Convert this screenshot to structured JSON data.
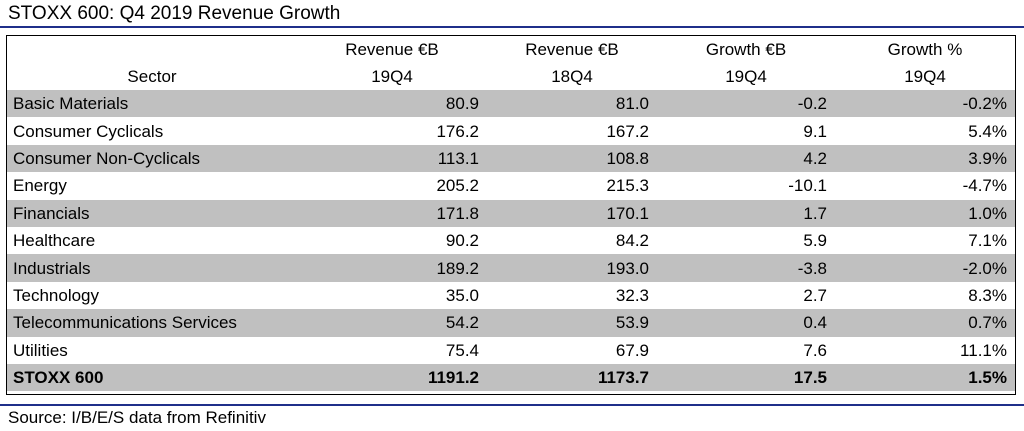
{
  "title": "STOXX 600: Q4 2019 Revenue Growth",
  "source": "Source: I/B/E/S data from Refinitiv",
  "colors": {
    "rule": "#1f2f8a",
    "shaded_row": "#c0c0c0"
  },
  "chart_data": {
    "type": "table",
    "title": "STOXX 600: Q4 2019 Revenue Growth",
    "columns": [
      {
        "line1": "",
        "line2": "Sector"
      },
      {
        "line1": "Revenue €B",
        "line2": "19Q4"
      },
      {
        "line1": "Revenue €B",
        "line2": "18Q4"
      },
      {
        "line1": "Growth €B",
        "line2": "19Q4"
      },
      {
        "line1": "Growth %",
        "line2": "19Q4"
      }
    ],
    "rows": [
      {
        "sector": "Basic Materials",
        "rev_19q4": "80.9",
        "rev_18q4": "81.0",
        "growth_eur": "-0.2",
        "growth_pct": "-0.2%"
      },
      {
        "sector": "Consumer Cyclicals",
        "rev_19q4": "176.2",
        "rev_18q4": "167.2",
        "growth_eur": "9.1",
        "growth_pct": "5.4%"
      },
      {
        "sector": "Consumer Non-Cyclicals",
        "rev_19q4": "113.1",
        "rev_18q4": "108.8",
        "growth_eur": "4.2",
        "growth_pct": "3.9%"
      },
      {
        "sector": "Energy",
        "rev_19q4": "205.2",
        "rev_18q4": "215.3",
        "growth_eur": "-10.1",
        "growth_pct": "-4.7%"
      },
      {
        "sector": "Financials",
        "rev_19q4": "171.8",
        "rev_18q4": "170.1",
        "growth_eur": "1.7",
        "growth_pct": "1.0%"
      },
      {
        "sector": "Healthcare",
        "rev_19q4": "90.2",
        "rev_18q4": "84.2",
        "growth_eur": "5.9",
        "growth_pct": "7.1%"
      },
      {
        "sector": "Industrials",
        "rev_19q4": "189.2",
        "rev_18q4": "193.0",
        "growth_eur": "-3.8",
        "growth_pct": "-2.0%"
      },
      {
        "sector": "Technology",
        "rev_19q4": "35.0",
        "rev_18q4": "32.3",
        "growth_eur": "2.7",
        "growth_pct": "8.3%"
      },
      {
        "sector": "Telecommunications Services",
        "rev_19q4": "54.2",
        "rev_18q4": "53.9",
        "growth_eur": "0.4",
        "growth_pct": "0.7%"
      },
      {
        "sector": "Utilities",
        "rev_19q4": "75.4",
        "rev_18q4": "67.9",
        "growth_eur": "7.6",
        "growth_pct": "11.1%"
      }
    ],
    "total": {
      "sector": "STOXX 600",
      "rev_19q4": "1191.2",
      "rev_18q4": "1173.7",
      "growth_eur": "17.5",
      "growth_pct": "1.5%"
    }
  }
}
